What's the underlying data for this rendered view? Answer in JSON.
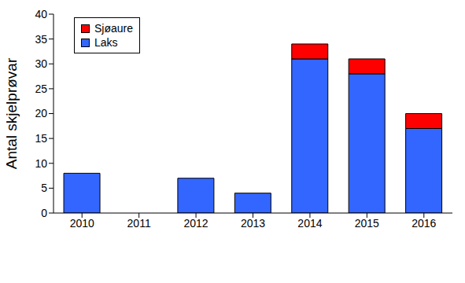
{
  "chart_data": {
    "type": "bar",
    "stacked": true,
    "ylabel": "Antal skjelprøvar",
    "categories": [
      "2010",
      "2011",
      "2012",
      "2013",
      "2014",
      "2015",
      "2016"
    ],
    "series": [
      {
        "name": "Laks",
        "color": "#3366ff",
        "values": [
          8,
          0,
          7,
          4,
          31,
          28,
          17
        ]
      },
      {
        "name": "Sjøaure",
        "color": "#ff0000",
        "values": [
          0,
          0,
          0,
          0,
          3,
          3,
          3
        ]
      }
    ],
    "ylim": [
      0,
      40
    ],
    "yticks": [
      0,
      5,
      10,
      15,
      20,
      25,
      30,
      35,
      40
    ],
    "grid": false,
    "legend": "upper left"
  }
}
